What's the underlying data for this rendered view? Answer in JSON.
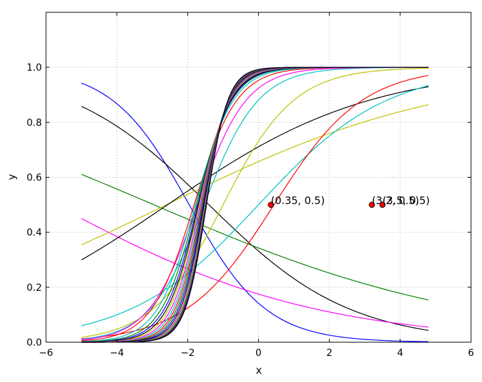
{
  "chart_data": {
    "type": "line",
    "xlabel": "x",
    "ylabel": "y",
    "xlim": [
      -6,
      6
    ],
    "ylim": [
      0,
      1.2
    ],
    "grid": true,
    "xticks": [
      -6,
      -4,
      -2,
      0,
      2,
      4,
      6
    ],
    "xtick_labels": [
      "−6",
      "−4",
      "−2",
      "0",
      "2",
      "4",
      "6"
    ],
    "yticks": [
      0.0,
      0.2,
      0.4,
      0.6,
      0.8,
      1.0
    ],
    "ytick_labels": [
      "0.0",
      "0.2",
      "0.4",
      "0.6",
      "0.8",
      "1.0"
    ],
    "x_range_of_curves": [
      -5,
      4.8
    ],
    "series": [
      {
        "color": "#0000ff",
        "a": -0.92,
        "b": -1.8
      },
      {
        "color": "#000000",
        "a": -0.5,
        "b": -0.7
      },
      {
        "color": "#ff00ff",
        "a": -0.27,
        "b": -1.55
      },
      {
        "color": "#008000",
        "a": -0.22,
        "b": -0.65
      },
      {
        "color": "#bfbf00",
        "a": 0.25,
        "b": 0.65
      },
      {
        "color": "#000000",
        "a": 0.35,
        "b": 0.9
      },
      {
        "color": "#00bfbf",
        "a": 0.55,
        "b": 0.0
      },
      {
        "color": "#ff0000",
        "a": 0.8,
        "b": -0.35
      },
      {
        "color": "#bfbf00",
        "a": 1.0,
        "b": 1.0
      },
      {
        "color": "#00bfbf",
        "a": 1.3,
        "b": 2.0
      },
      {
        "color": "#ff00ff",
        "a": 1.45,
        "b": 2.5
      },
      {
        "color": "#ff0000",
        "a": 1.65,
        "b": 3.0
      },
      {
        "color": "#00bfbf",
        "a": 1.85,
        "b": 3.3
      },
      {
        "color": "#008000",
        "a": 2.0,
        "b": 3.5
      },
      {
        "color": "#0000ff",
        "a": 2.1,
        "b": 3.6
      },
      {
        "color": "#000000",
        "a": 2.2,
        "b": 3.72
      },
      {
        "color": "#bfbf00",
        "a": 2.3,
        "b": 3.85
      },
      {
        "color": "#ff00ff",
        "a": 2.4,
        "b": 3.95
      },
      {
        "color": "#00bfbf",
        "a": 2.5,
        "b": 4.05
      },
      {
        "color": "#ff0000",
        "a": 2.6,
        "b": 4.15
      },
      {
        "color": "#008000",
        "a": 2.7,
        "b": 4.25
      },
      {
        "color": "#0000ff",
        "a": 2.8,
        "b": 4.35
      },
      {
        "color": "#000000",
        "a": 2.9,
        "b": 4.45
      },
      {
        "color": "#ff00ff",
        "a": 3.0,
        "b": 4.55
      },
      {
        "color": "#bfbf00",
        "a": 3.05,
        "b": 4.6
      },
      {
        "color": "#00bfbf",
        "a": 3.1,
        "b": 4.65
      },
      {
        "color": "#008000",
        "a": 3.15,
        "b": 4.7
      },
      {
        "color": "#ff0000",
        "a": 3.2,
        "b": 4.75
      },
      {
        "color": "#0000ff",
        "a": 3.25,
        "b": 4.8
      },
      {
        "color": "#000000",
        "a": 3.3,
        "b": 4.85
      }
    ],
    "points": [
      {
        "x": 0.35,
        "y": 0.5,
        "label": "(0.35, 0.5)"
      },
      {
        "x": 3.2,
        "y": 0.5,
        "label": "(3.2, 0.5)"
      },
      {
        "x": 3.5,
        "y": 0.5,
        "label": "(3.5, 0.5)"
      }
    ],
    "point_color": "#ff0000"
  }
}
